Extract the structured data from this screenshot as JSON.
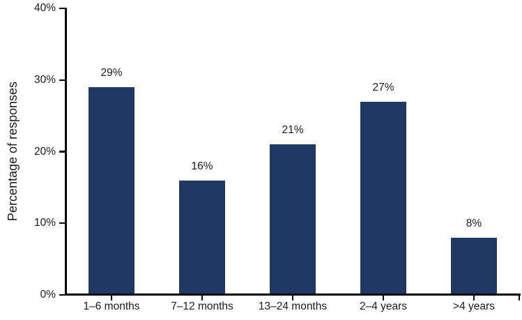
{
  "chart_data": {
    "type": "bar",
    "title": "",
    "xlabel": "",
    "ylabel": "Percentage of responses",
    "categories": [
      "1–6 months",
      "7–12 months",
      "13–24 months",
      "2–4 years",
      ">4 years"
    ],
    "values": [
      29,
      16,
      21,
      27,
      8
    ],
    "value_labels": [
      "29%",
      "16%",
      "21%",
      "27%",
      "8%"
    ],
    "ylim": [
      0,
      40
    ],
    "yticks": [
      0,
      10,
      20,
      30,
      40
    ],
    "ytick_labels": [
      "0%",
      "10%",
      "20%",
      "30%",
      "40%"
    ],
    "grid": false,
    "legend": "none",
    "colors": {
      "bar": "#1f3864",
      "axis": "#000000",
      "text": "#1a1a1a",
      "background": "#ffffff"
    }
  }
}
